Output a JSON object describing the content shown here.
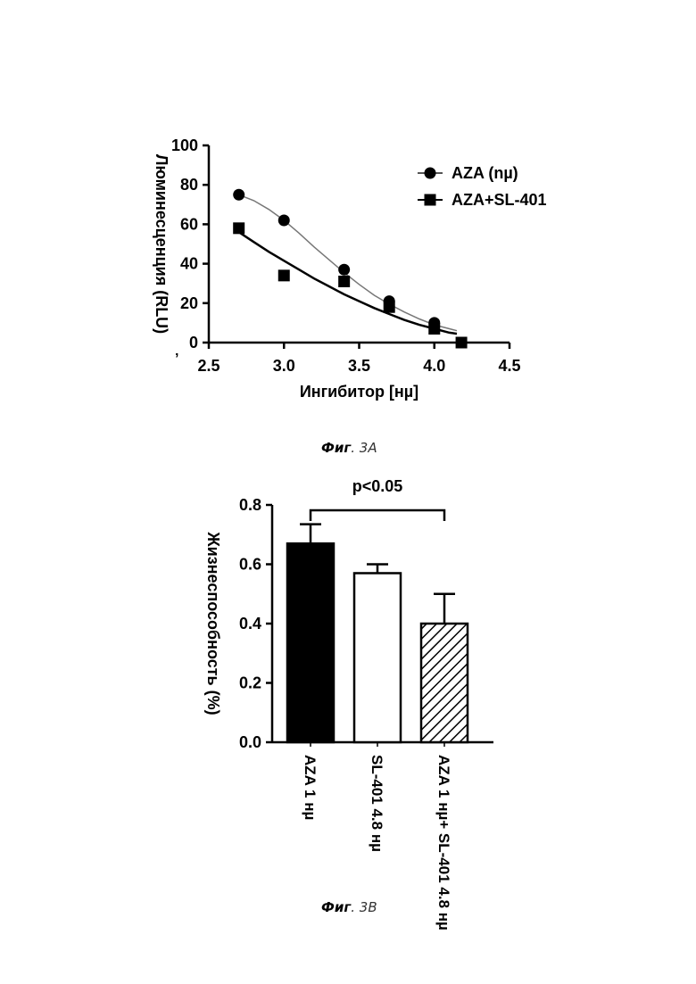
{
  "chart_data": [
    {
      "type": "scatter",
      "title": "",
      "xlabel": "Ингибитор [нµ]",
      "ylabel": "Люминесценция (RLU)",
      "xlim": [
        2.5,
        4.5
      ],
      "ylim": [
        0,
        100
      ],
      "xticks": [
        2.5,
        3.0,
        3.5,
        4.0,
        4.5
      ],
      "xtick_labels": [
        "2.5",
        "3.0",
        "3.5",
        "4.0",
        "4.5"
      ],
      "yticks": [
        0,
        20,
        40,
        60,
        80,
        100
      ],
      "ytick_labels": [
        "0",
        "20",
        "40",
        "60",
        "80",
        "100"
      ],
      "grid": false,
      "legend_position": "top-right",
      "series": [
        {
          "name": "AZA (nµ)",
          "marker": "circle",
          "color": "#000000",
          "curve_color": "#777777",
          "x": [
            2.7,
            3.0,
            3.4,
            3.7,
            4.0
          ],
          "y": [
            75,
            62,
            37,
            21,
            10
          ],
          "fit_x": [
            2.7,
            2.8,
            2.9,
            3.0,
            3.1,
            3.2,
            3.3,
            3.4,
            3.5,
            3.6,
            3.7,
            3.8,
            3.9,
            4.0,
            4.1,
            4.15
          ],
          "fit_y": [
            75,
            72,
            67.5,
            62,
            55.5,
            48.5,
            42,
            35.5,
            29.5,
            24,
            19.5,
            15.5,
            12,
            9,
            7,
            6
          ]
        },
        {
          "name": "AZA+SL-401",
          "marker": "square",
          "color": "#000000",
          "curve_color": "#000000",
          "x": [
            2.7,
            3.0,
            3.4,
            3.7,
            4.0,
            4.18
          ],
          "y": [
            58,
            34,
            31,
            18,
            7,
            0
          ],
          "fit_x": [
            2.7,
            2.8,
            2.9,
            3.0,
            3.1,
            3.2,
            3.3,
            3.4,
            3.5,
            3.6,
            3.7,
            3.8,
            3.9,
            4.0,
            4.1,
            4.15
          ],
          "fit_y": [
            56,
            51,
            46,
            41.5,
            37,
            32.5,
            28.5,
            24.5,
            21,
            17.5,
            14.5,
            11.5,
            9,
            7,
            5,
            4.5
          ]
        }
      ]
    },
    {
      "type": "bar",
      "title": "",
      "xlabel": "",
      "ylabel": "Жизнеспособность (%)",
      "ylim": [
        0,
        0.8
      ],
      "yticks": [
        0.0,
        0.2,
        0.4,
        0.6,
        0.8
      ],
      "ytick_labels": [
        "0.0",
        "0.2",
        "0.4",
        "0.6",
        "0.8"
      ],
      "grid": false,
      "categories": [
        "AZA 1 нµ",
        "SL-401 4.8 нµ",
        "AZA 1 нµ+ SL-401 4.8 нµ"
      ],
      "values": [
        0.67,
        0.57,
        0.4
      ],
      "errors": [
        0.065,
        0.03,
        0.1
      ],
      "fills": [
        "solid-black",
        "white",
        "hatched"
      ],
      "significance": {
        "label": "p<0.05",
        "from": 0,
        "to": 2
      }
    }
  ],
  "captions": {
    "fig_a": {
      "bold": "Фиг",
      "rest": ". 3А"
    },
    "fig_b": {
      "bold": "Фиг",
      "rest": ". 3В"
    }
  },
  "stray_mark": "’"
}
